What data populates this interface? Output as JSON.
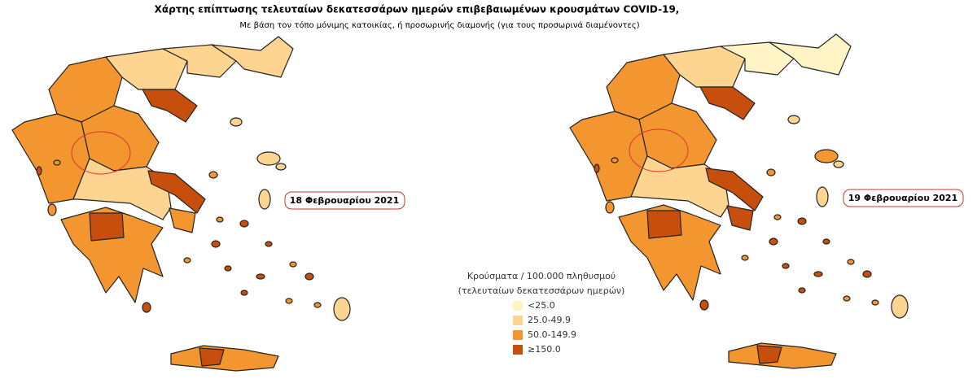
{
  "header": {
    "title": "Χάρτης επίπτωσης τελευταίων δεκατεσσάρων ημερών επιβεβαιωμένων κρουσμάτων COVID-19,",
    "subtitle": "Με βάση τον τόπο μόνιμης κατοικίας, ή προσωρινής διαμονής (για τους προσωρινά διαμένοντες)"
  },
  "maps": [
    {
      "date": "18 Φεβρουαρίου 2021"
    },
    {
      "date": "19 Φεβρουαρίου 2021"
    }
  ],
  "legend": {
    "title": [
      "Κρούσματα / 100.000 πληθυσμού",
      "(τελευταίων δεκατεσσάρων ημερών)"
    ],
    "items": [
      {
        "label": "<25.0",
        "color": "#fff4c6"
      },
      {
        "label": "25.0-49.9",
        "color": "#fdd591"
      },
      {
        "label": "50.0-149.9",
        "color": "#f3962f"
      },
      {
        "label": "≥150.0",
        "color": "#c64f0e"
      }
    ]
  }
}
